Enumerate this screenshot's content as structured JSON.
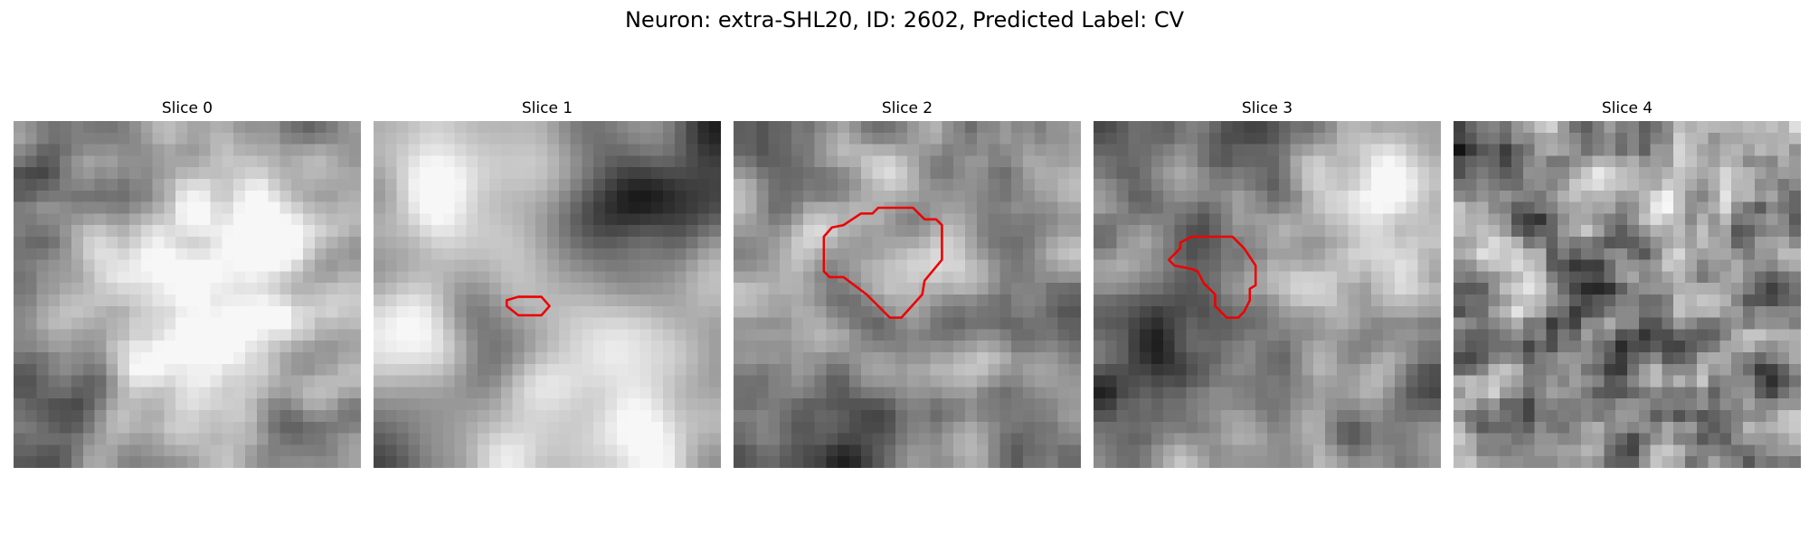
{
  "title": "Neuron: extra-SHL20, ID: 2602, Predicted Label: CV",
  "panels": [
    {
      "label": "Slice 0",
      "seed": 11,
      "blur": 1.2,
      "contour": []
    },
    {
      "label": "Slice 1",
      "seed": 23,
      "blur": 2.4,
      "contour": [
        [
          11.5,
          15.5
        ],
        [
          12.5,
          15.2
        ],
        [
          14.5,
          15.2
        ],
        [
          15.2,
          16
        ],
        [
          14.5,
          16.8
        ],
        [
          12.5,
          16.8
        ],
        [
          11.5,
          16
        ]
      ]
    },
    {
      "label": "Slice 2",
      "seed": 37,
      "blur": 0.8,
      "contour": [
        [
          12.5,
          7.5
        ],
        [
          15.5,
          7.5
        ],
        [
          16.5,
          8.5
        ],
        [
          17.5,
          8.5
        ],
        [
          18,
          9
        ],
        [
          18,
          12
        ],
        [
          16.5,
          13.8
        ],
        [
          16.3,
          15
        ],
        [
          14.5,
          17
        ],
        [
          13.5,
          17
        ],
        [
          11.5,
          15
        ],
        [
          9.5,
          13.5
        ],
        [
          8.3,
          13.5
        ],
        [
          7.8,
          13
        ],
        [
          7.8,
          10
        ],
        [
          8.5,
          9.2
        ],
        [
          9.5,
          9
        ],
        [
          11,
          8
        ],
        [
          12,
          8
        ]
      ]
    },
    {
      "label": "Slice 3",
      "seed": 53,
      "blur": 0.9,
      "contour": [
        [
          8.5,
          10
        ],
        [
          12,
          10
        ],
        [
          13,
          11
        ],
        [
          14,
          12.5
        ],
        [
          14,
          14.2
        ],
        [
          13.5,
          14.5
        ],
        [
          13.5,
          15.5
        ],
        [
          13,
          16.5
        ],
        [
          12.5,
          17
        ],
        [
          11.5,
          17
        ],
        [
          11,
          16.5
        ],
        [
          10.5,
          16
        ],
        [
          10.5,
          15
        ],
        [
          9.5,
          14
        ],
        [
          9,
          13
        ],
        [
          8.5,
          12.8
        ],
        [
          7,
          12.5
        ],
        [
          6.5,
          12
        ],
        [
          7,
          11.5
        ],
        [
          7.5,
          11
        ],
        [
          7.5,
          10.5
        ]
      ]
    },
    {
      "label": "Slice 4",
      "seed": 71,
      "blur": 0.7,
      "contour": []
    }
  ],
  "colors": {
    "contour": "#ee0000"
  }
}
